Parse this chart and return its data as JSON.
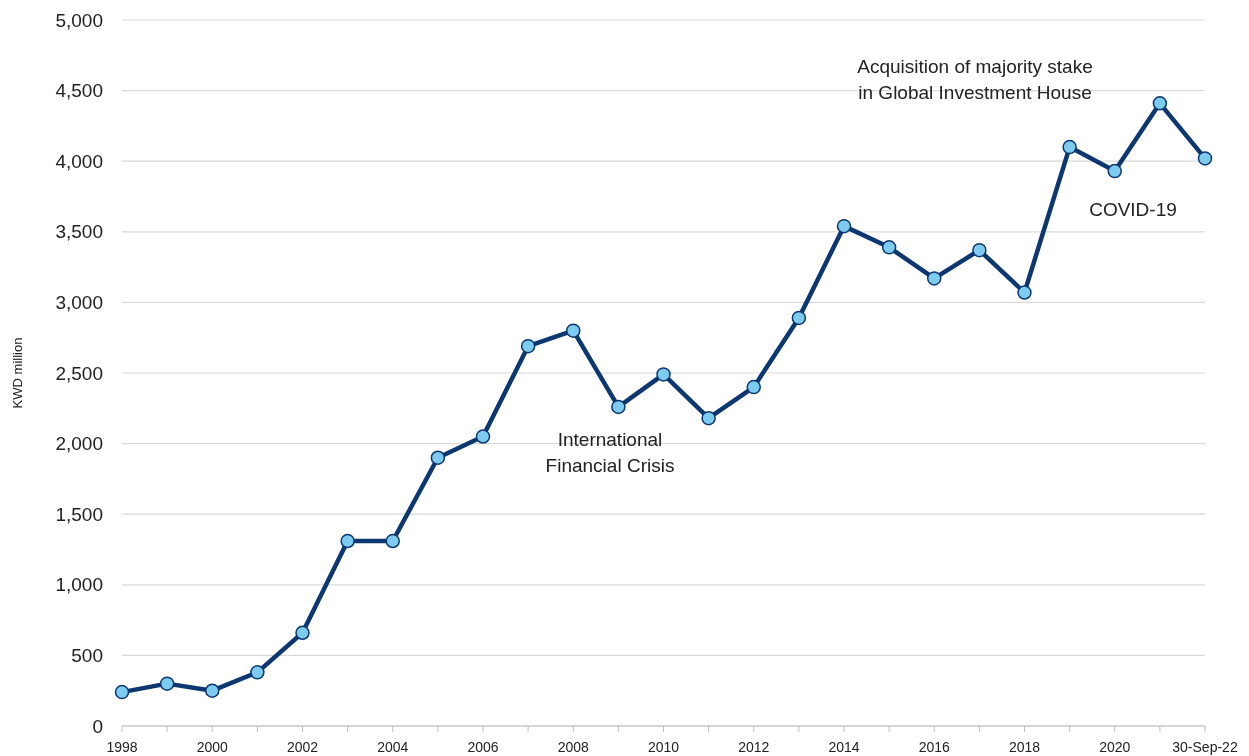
{
  "chart_data": {
    "type": "line",
    "ylabel": "KWD million",
    "categories": [
      "1998",
      null,
      "2000",
      null,
      "2002",
      null,
      "2004",
      null,
      "2006",
      null,
      "2008",
      null,
      "2010",
      null,
      "2012",
      null,
      "2014",
      null,
      "2016",
      null,
      "2018",
      null,
      "2020",
      null,
      "30-Sep-22"
    ],
    "series": [
      {
        "color": "#0c3770",
        "values": [
          240,
          300,
          250,
          380,
          660,
          1310,
          1310,
          1900,
          2050,
          2690,
          2800,
          2260,
          2490,
          2180,
          2400,
          2890,
          3540,
          3390,
          3170,
          3370,
          3070,
          4100,
          3930,
          4410,
          4020
        ]
      }
    ],
    "ylim": [
      0,
      5000
    ],
    "yticks": [
      {
        "value": 0,
        "label": "0"
      },
      {
        "value": 500,
        "label": "500"
      },
      {
        "value": 1000,
        "label": "1,000"
      },
      {
        "value": 1500,
        "label": "1,500"
      },
      {
        "value": 2000,
        "label": "2,000"
      },
      {
        "value": 2500,
        "label": "2,500"
      },
      {
        "value": 3000,
        "label": "3,000"
      },
      {
        "value": 3500,
        "label": "3,500"
      },
      {
        "value": 4000,
        "label": "4,000"
      },
      {
        "value": 4500,
        "label": "4,500"
      },
      {
        "value": 5000,
        "label": "5,000"
      }
    ],
    "grid": "y",
    "marker": "circle",
    "line_style": "solid",
    "annotations": [
      "Acquisition of majority stake\nin Global Investment House",
      "COVID-19",
      "International\nFinancial Crisis"
    ]
  }
}
